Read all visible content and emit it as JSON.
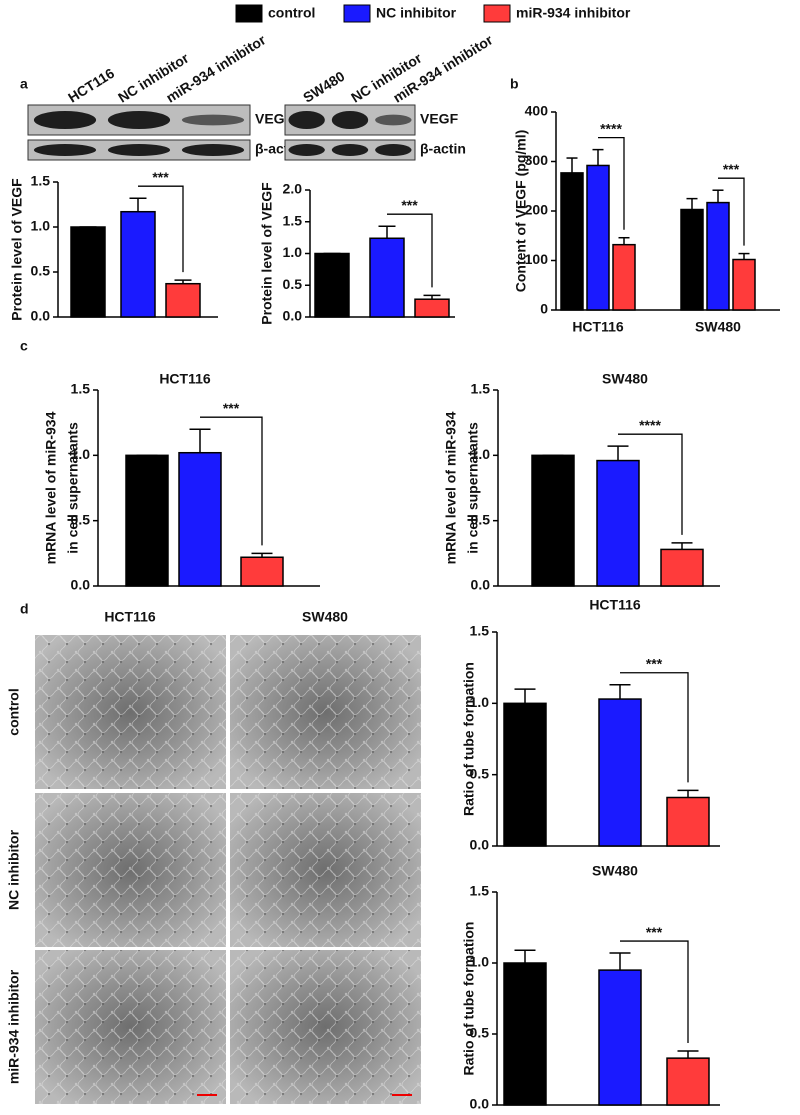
{
  "figure": {
    "legend": [
      {
        "name": "control",
        "color": "#000000"
      },
      {
        "name": "NC inhibitor",
        "color": "#1a1aff"
      },
      {
        "name": "miR-934 inhibitor",
        "color": "#ff3b3b"
      }
    ],
    "panels": [
      "a",
      "b",
      "c",
      "d"
    ],
    "blots": [
      {
        "lanes": [
          "HCT116",
          "NC inhibitor",
          "miR-934 inhibitor"
        ],
        "rows": [
          "VEGF",
          "β-actin"
        ]
      },
      {
        "lanes": [
          "SW480",
          "NC inhibitor",
          "miR-934 inhibitor"
        ],
        "rows": [
          "VEGF",
          "β-actin"
        ]
      }
    ],
    "images": {
      "columns": [
        "HCT116",
        "SW480"
      ],
      "rows": [
        "control",
        "NC inhibitor",
        "miR-934 inhibitor"
      ]
    }
  },
  "chart_data": [
    {
      "type": "bar",
      "y_label": [
        "Protein level of VEGF"
      ],
      "values": [
        1.0,
        1.17,
        0.37
      ],
      "errors": [
        0,
        0.15,
        0.04
      ],
      "ylim": [
        0,
        1.5
      ],
      "yticks": [
        {
          "value": 0,
          "label": "0.0"
        },
        0.5,
        {
          "value": 1,
          "label": "1.0"
        },
        1.5
      ],
      "significance": [
        "***"
      ]
    },
    {
      "type": "bar",
      "y_label": [
        "Protein level of VEGF"
      ],
      "values": [
        1.0,
        1.24,
        0.28
      ],
      "errors": [
        0,
        0.19,
        0.06
      ],
      "ylim": [
        0,
        2
      ],
      "yticks": [
        {
          "value": 0,
          "label": "0.0"
        },
        0.5,
        {
          "value": 1,
          "label": "1.0"
        },
        1.5,
        {
          "value": 2,
          "label": "2.0"
        }
      ],
      "significance": [
        "***"
      ]
    },
    {
      "type": "grouped_bar",
      "y_label": [
        "Content of VEGF (pg/ml)"
      ],
      "categories": [
        "HCT116",
        "SW480"
      ],
      "series": [
        {
          "values": [
            277,
            203
          ],
          "errors": [
            30,
            22
          ]
        },
        {
          "values": [
            292,
            217
          ],
          "errors": [
            32,
            25
          ]
        },
        {
          "values": [
            132,
            102
          ],
          "errors": [
            14,
            12
          ]
        }
      ],
      "ylim": [
        0,
        400
      ],
      "yticks": [
        0,
        100,
        200,
        300,
        400
      ],
      "significance": [
        "****",
        "***"
      ]
    },
    {
      "type": "bar",
      "title": "HCT116",
      "y_label": [
        "mRNA level of miR-934",
        "in cell supernatants"
      ],
      "values": [
        1.0,
        1.02,
        0.22
      ],
      "errors": [
        0,
        0.18,
        0.03
      ],
      "ylim": [
        0,
        1.5
      ],
      "yticks": [
        {
          "value": 0,
          "label": "0.0"
        },
        0.5,
        {
          "value": 1,
          "label": "1.0"
        },
        1.5
      ],
      "significance": [
        "***"
      ]
    },
    {
      "type": "bar",
      "title": "SW480",
      "y_label": [
        "mRNA level of miR-934",
        "in cell supernatants"
      ],
      "values": [
        1.0,
        0.96,
        0.28
      ],
      "errors": [
        0,
        0.11,
        0.05
      ],
      "ylim": [
        0,
        1.5
      ],
      "yticks": [
        {
          "value": 0,
          "label": "0.0"
        },
        0.5,
        {
          "value": 1,
          "label": "1.0"
        },
        1.5
      ],
      "significance": [
        "****"
      ]
    },
    {
      "type": "bar",
      "title": "HCT116",
      "y_label": [
        "Ratio of tube formation"
      ],
      "values": [
        1.0,
        1.03,
        0.34
      ],
      "errors": [
        0.1,
        0.1,
        0.05
      ],
      "ylim": [
        0,
        1.5
      ],
      "yticks": [
        {
          "value": 0,
          "label": "0.0"
        },
        0.5,
        {
          "value": 1,
          "label": "1.0"
        },
        1.5
      ],
      "significance": [
        "***"
      ]
    },
    {
      "type": "bar",
      "title": "SW480",
      "y_label": [
        "Ratio of tube formation"
      ],
      "values": [
        1.0,
        0.95,
        0.33
      ],
      "errors": [
        0.09,
        0.12,
        0.05
      ],
      "ylim": [
        0,
        1.5
      ],
      "yticks": [
        {
          "value": 0,
          "label": "0.0"
        },
        0.5,
        {
          "value": 1,
          "label": "1.0"
        },
        1.5
      ],
      "significance": [
        "***"
      ]
    }
  ]
}
